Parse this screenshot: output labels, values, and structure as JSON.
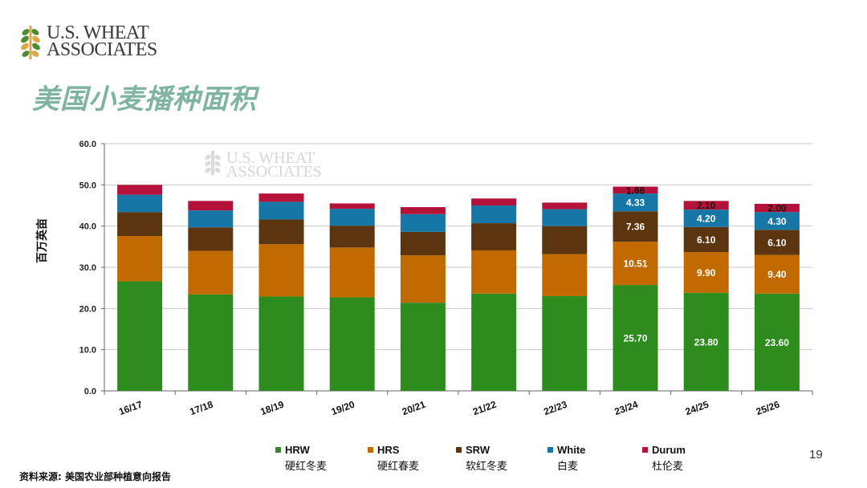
{
  "header": {
    "logo_line1": "U.S. WHEAT",
    "logo_line2": "ASSOCIATES",
    "title": "美国小麦播种面积"
  },
  "watermark": {
    "line1": "U.S. WHEAT",
    "line2": "ASSOCIATES"
  },
  "footer": {
    "source": "资料来源: 美国农业部种植意向报告",
    "page_number": "19"
  },
  "legend": [
    {
      "name": "HRW",
      "sub": "硬红冬麦",
      "color": "#2e8b1e"
    },
    {
      "name": "HRS",
      "sub": "硬红春麦",
      "color": "#c06a00"
    },
    {
      "name": "SRW",
      "sub": "软红冬麦",
      "color": "#5a3510"
    },
    {
      "name": "White",
      "sub": "白麦",
      "color": "#1677a6"
    },
    {
      "name": "Durum",
      "sub": "杜伦麦",
      "color": "#b5123a"
    }
  ],
  "chart_data": {
    "type": "bar",
    "stacked": true,
    "ylabel": "百万英亩",
    "ylim": [
      0,
      60
    ],
    "yticks": [
      "0.0",
      "10.0",
      "20.0",
      "30.0",
      "40.0",
      "50.0",
      "60.0"
    ],
    "grid": true,
    "legend_position": "bottom",
    "categories": [
      "16/17",
      "17/18",
      "18/19",
      "19/20",
      "20/21",
      "21/22",
      "22/23",
      "23/24",
      "24/25",
      "25/26"
    ],
    "series": [
      {
        "name": "HRW",
        "color": "#2e8b1e",
        "values": [
          26.6,
          23.4,
          22.9,
          22.7,
          21.4,
          23.6,
          23.0,
          25.7,
          23.8,
          23.6
        ],
        "labels": [
          "",
          "",
          "",
          "",
          "",
          "",
          "",
          "25.70",
          "23.80",
          "23.60"
        ]
      },
      {
        "name": "HRS",
        "color": "#c06a00",
        "values": [
          11.0,
          10.6,
          12.7,
          12.1,
          11.5,
          10.5,
          10.2,
          10.51,
          9.9,
          9.4
        ],
        "labels": [
          "",
          "",
          "",
          "",
          "",
          "",
          "",
          "10.51",
          "9.90",
          "9.40"
        ]
      },
      {
        "name": "SRW",
        "color": "#5a3510",
        "values": [
          5.8,
          5.7,
          6.0,
          5.3,
          5.7,
          6.6,
          6.8,
          7.36,
          6.1,
          6.1
        ],
        "labels": [
          "",
          "",
          "",
          "",
          "",
          "",
          "",
          "7.36",
          "6.10",
          "6.10"
        ]
      },
      {
        "name": "White",
        "color": "#1677a6",
        "values": [
          4.2,
          4.1,
          4.3,
          4.1,
          4.3,
          4.3,
          4.1,
          4.33,
          4.2,
          4.3
        ],
        "labels": [
          "",
          "",
          "",
          "",
          "",
          "",
          "",
          "4.33",
          "4.20",
          "4.30"
        ]
      },
      {
        "name": "Durum",
        "color": "#b5123a",
        "values": [
          2.4,
          2.3,
          2.0,
          1.3,
          1.7,
          1.7,
          1.6,
          1.68,
          2.1,
          2.0
        ],
        "labels": [
          "",
          "",
          "",
          "",
          "",
          "",
          "",
          "1.68",
          "2.10",
          "2.00"
        ]
      }
    ]
  }
}
